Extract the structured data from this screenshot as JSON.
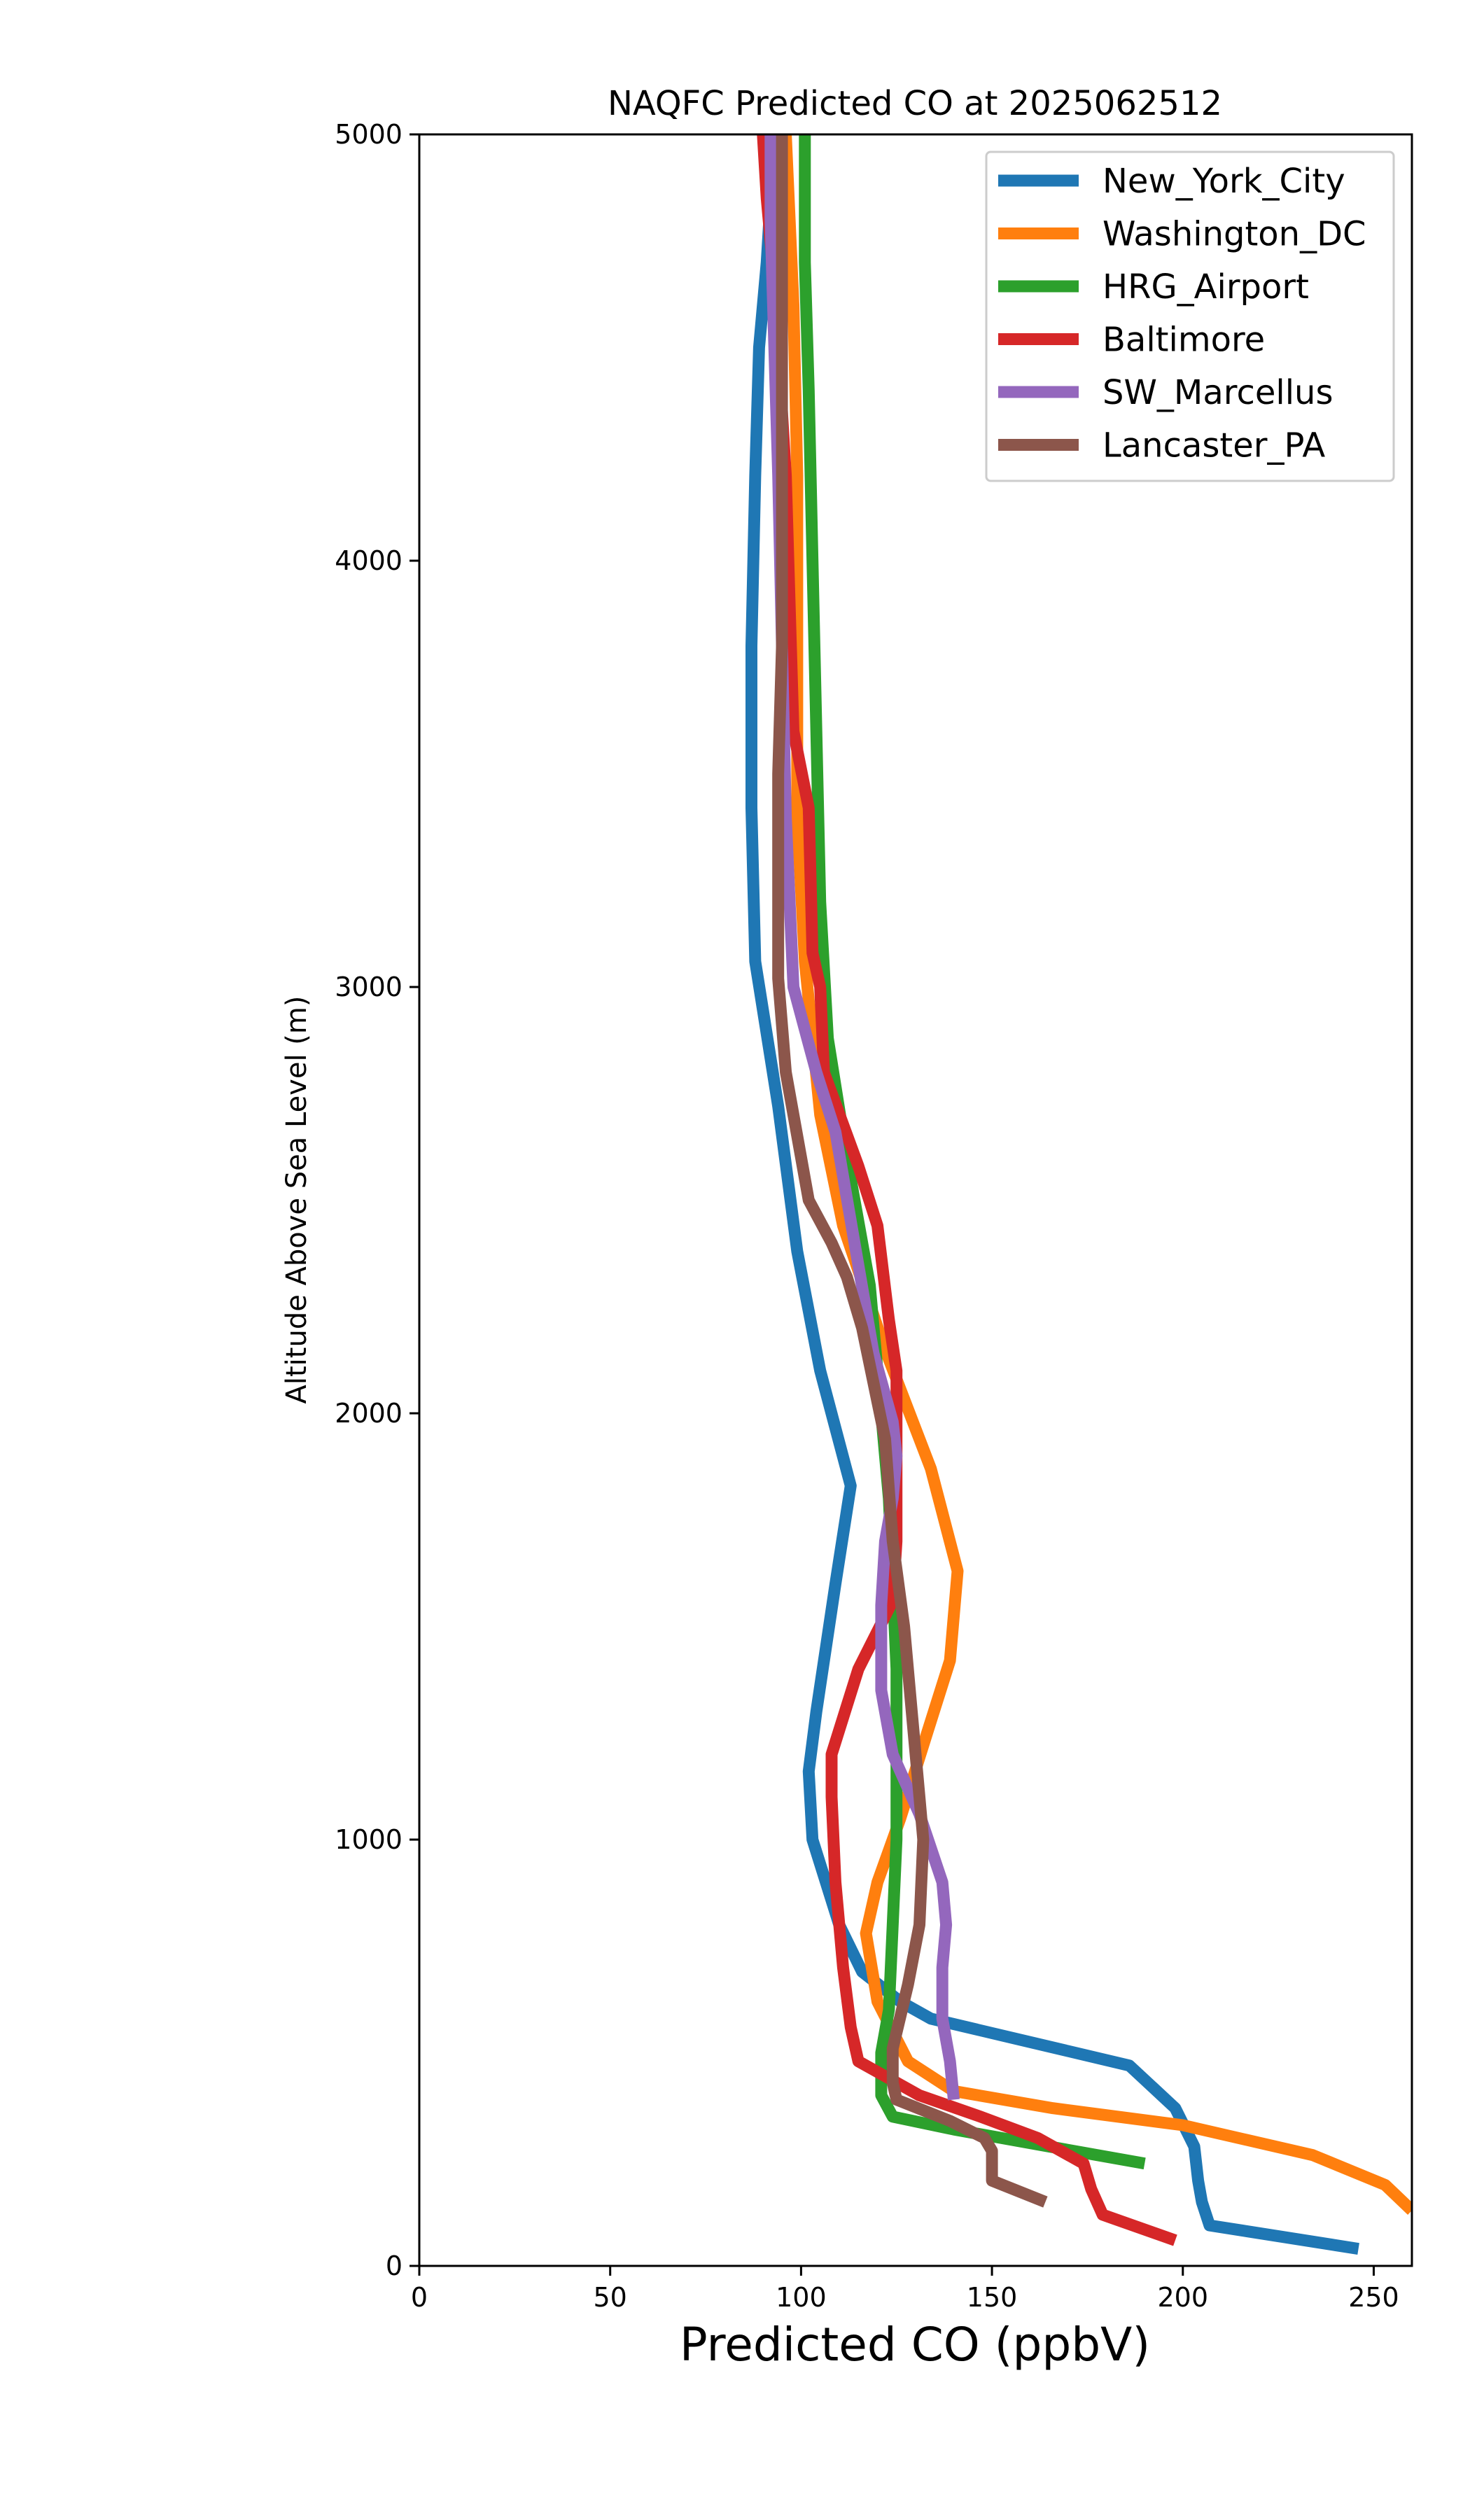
{
  "chart_data": {
    "type": "line",
    "title": "NAQFC Predicted CO at 2025062512",
    "xlabel": "Predicted CO (ppbV)",
    "ylabel": "Altitude Above Sea Level (m)",
    "xlim": [
      0,
      260
    ],
    "ylim": [
      0,
      5000
    ],
    "xticks": [
      0,
      50,
      100,
      150,
      200,
      250
    ],
    "yticks": [
      0,
      1000,
      2000,
      3000,
      4000,
      5000
    ],
    "grid": false,
    "legend_position": "top-right",
    "series": [
      {
        "name": "New_York_City",
        "color": "#1f77b4",
        "x": [
          246,
          207,
          205,
          204,
          203,
          198,
          186,
          134,
          126,
          116,
          110,
          103,
          102,
          104,
          109,
          113,
          105,
          99,
          94,
          88,
          87,
          87,
          88,
          89,
          91,
          92,
          94
        ],
        "y": [
          40,
          95,
          150,
          200,
          280,
          370,
          470,
          580,
          620,
          690,
          800,
          1000,
          1160,
          1300,
          1600,
          1830,
          2100,
          2380,
          2720,
          3060,
          3420,
          3800,
          4200,
          4500,
          4700,
          4850,
          5000
        ]
      },
      {
        "name": "Washington_DC",
        "color": "#ff7f0e",
        "x": [
          260,
          253,
          234,
          200,
          166,
          140,
          128,
          120,
          117,
          120,
          126,
          133,
          139,
          141,
          134,
          122,
          111,
          105,
          101,
          99,
          99,
          99,
          98,
          96
        ],
        "y": [
          130,
          190,
          260,
          330,
          370,
          410,
          480,
          620,
          780,
          900,
          1050,
          1250,
          1420,
          1630,
          1870,
          2150,
          2440,
          2700,
          3060,
          3400,
          3800,
          4200,
          4600,
          5000
        ]
      },
      {
        "name": "HRG_Airport",
        "color": "#2ca02c",
        "x": [
          190,
          165,
          140,
          124,
          121,
          121,
          123,
          124,
          125,
          125,
          125,
          124,
          123,
          121,
          118,
          112,
          107,
          105,
          104,
          103,
          102,
          101,
          101
        ],
        "y": [
          240,
          280,
          320,
          350,
          400,
          500,
          600,
          800,
          1000,
          1200,
          1400,
          1600,
          1800,
          2000,
          2300,
          2600,
          2880,
          3200,
          3600,
          4000,
          4400,
          4700,
          5000
        ]
      },
      {
        "name": "Baltimore",
        "color": "#d62728",
        "x": [
          198,
          179,
          176,
          174,
          162,
          147,
          131,
          115,
          113,
          111,
          109,
          108,
          108,
          115,
          124,
          125,
          125,
          123,
          120,
          115,
          106,
          105,
          103,
          102,
          98,
          97,
          96,
          95,
          94,
          93,
          92,
          91,
          90
        ],
        "y": [
          60,
          120,
          180,
          240,
          300,
          350,
          400,
          480,
          560,
          700,
          900,
          1100,
          1200,
          1400,
          1560,
          1700,
          2100,
          2220,
          2440,
          2580,
          2800,
          3000,
          3080,
          3420,
          3600,
          3900,
          4200,
          4350,
          4500,
          4650,
          4750,
          4850,
          5000
        ]
      },
      {
        "name": "SW_Marcellus",
        "color": "#9467bd",
        "x": [
          140,
          139,
          137,
          137,
          138,
          137,
          131,
          124,
          121,
          121,
          122,
          124,
          125,
          124,
          119,
          114,
          109,
          104,
          101,
          98,
          96,
          95,
          94,
          93,
          92,
          92
        ],
        "y": [
          390,
          480,
          580,
          700,
          800,
          900,
          1060,
          1200,
          1350,
          1550,
          1700,
          1800,
          1900,
          1980,
          2140,
          2400,
          2660,
          2800,
          2900,
          3000,
          3400,
          3800,
          4200,
          4500,
          4800,
          5000
        ]
      },
      {
        "name": "Lancaster_PA",
        "color": "#8c564b",
        "x": [
          164,
          150,
          150,
          148,
          139,
          125,
          124,
          124,
          128,
          131,
          132,
          131,
          129,
          127,
          124,
          122,
          116,
          112,
          108,
          102,
          96,
          94,
          94,
          94,
          95,
          95,
          95,
          95,
          95,
          95
        ],
        "y": [
          150,
          200,
          270,
          300,
          340,
          390,
          430,
          510,
          660,
          800,
          1000,
          1100,
          1300,
          1500,
          1700,
          1940,
          2200,
          2320,
          2400,
          2500,
          2800,
          3020,
          3200,
          3500,
          3800,
          4100,
          4400,
          4600,
          4800,
          5000
        ]
      }
    ]
  }
}
